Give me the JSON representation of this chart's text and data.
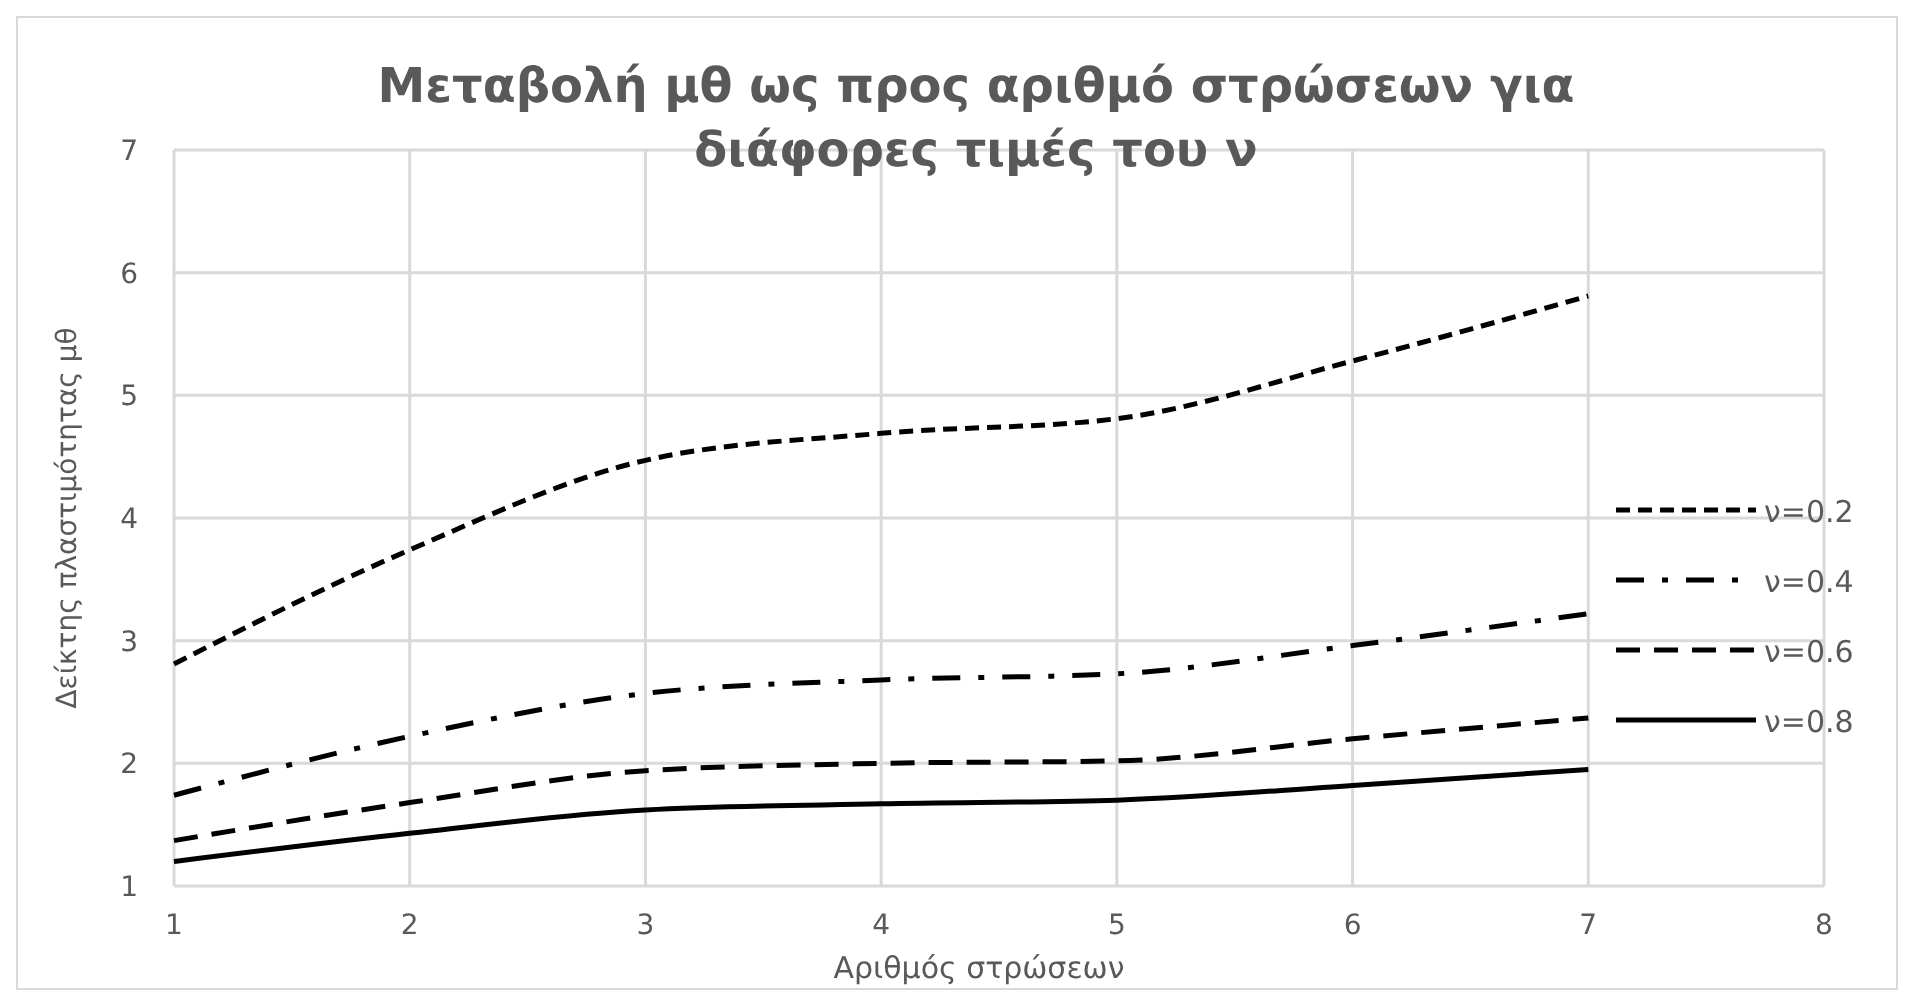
{
  "chart_data": {
    "type": "line",
    "title": "Μεταβολή μθ ως προς αριθμό στρώσεων για διάφορες τιμές του ν",
    "xlabel": "Αριθμός στρώσεων",
    "ylabel": "Δείκτης πλαστιμότητας μθ",
    "x": [
      1,
      2,
      3,
      4,
      5,
      6,
      7
    ],
    "series": [
      {
        "name": "ν=0.2",
        "color": "#000000",
        "line_style": "dotted",
        "values": [
          2.81,
          3.74,
          4.47,
          4.69,
          4.81,
          5.28,
          5.81
        ]
      },
      {
        "name": "ν=0.4",
        "color": "#000000",
        "line_style": "dashdot",
        "values": [
          1.74,
          2.22,
          2.57,
          2.68,
          2.73,
          2.96,
          3.22
        ]
      },
      {
        "name": "ν=0.6",
        "color": "#000000",
        "line_style": "dashed",
        "values": [
          1.37,
          1.68,
          1.94,
          2.0,
          2.02,
          2.2,
          2.37
        ]
      },
      {
        "name": "ν=0.8",
        "color": "#000000",
        "line_style": "solid",
        "values": [
          1.2,
          1.43,
          1.62,
          1.67,
          1.7,
          1.82,
          1.95
        ]
      }
    ],
    "xlim": [
      1,
      8
    ],
    "xticks": [
      1,
      2,
      3,
      4,
      5,
      6,
      7,
      8
    ],
    "ylim": [
      1,
      7
    ],
    "yticks": [
      1,
      2,
      3,
      4,
      5,
      6,
      7
    ],
    "grid": true,
    "legend": "right"
  }
}
